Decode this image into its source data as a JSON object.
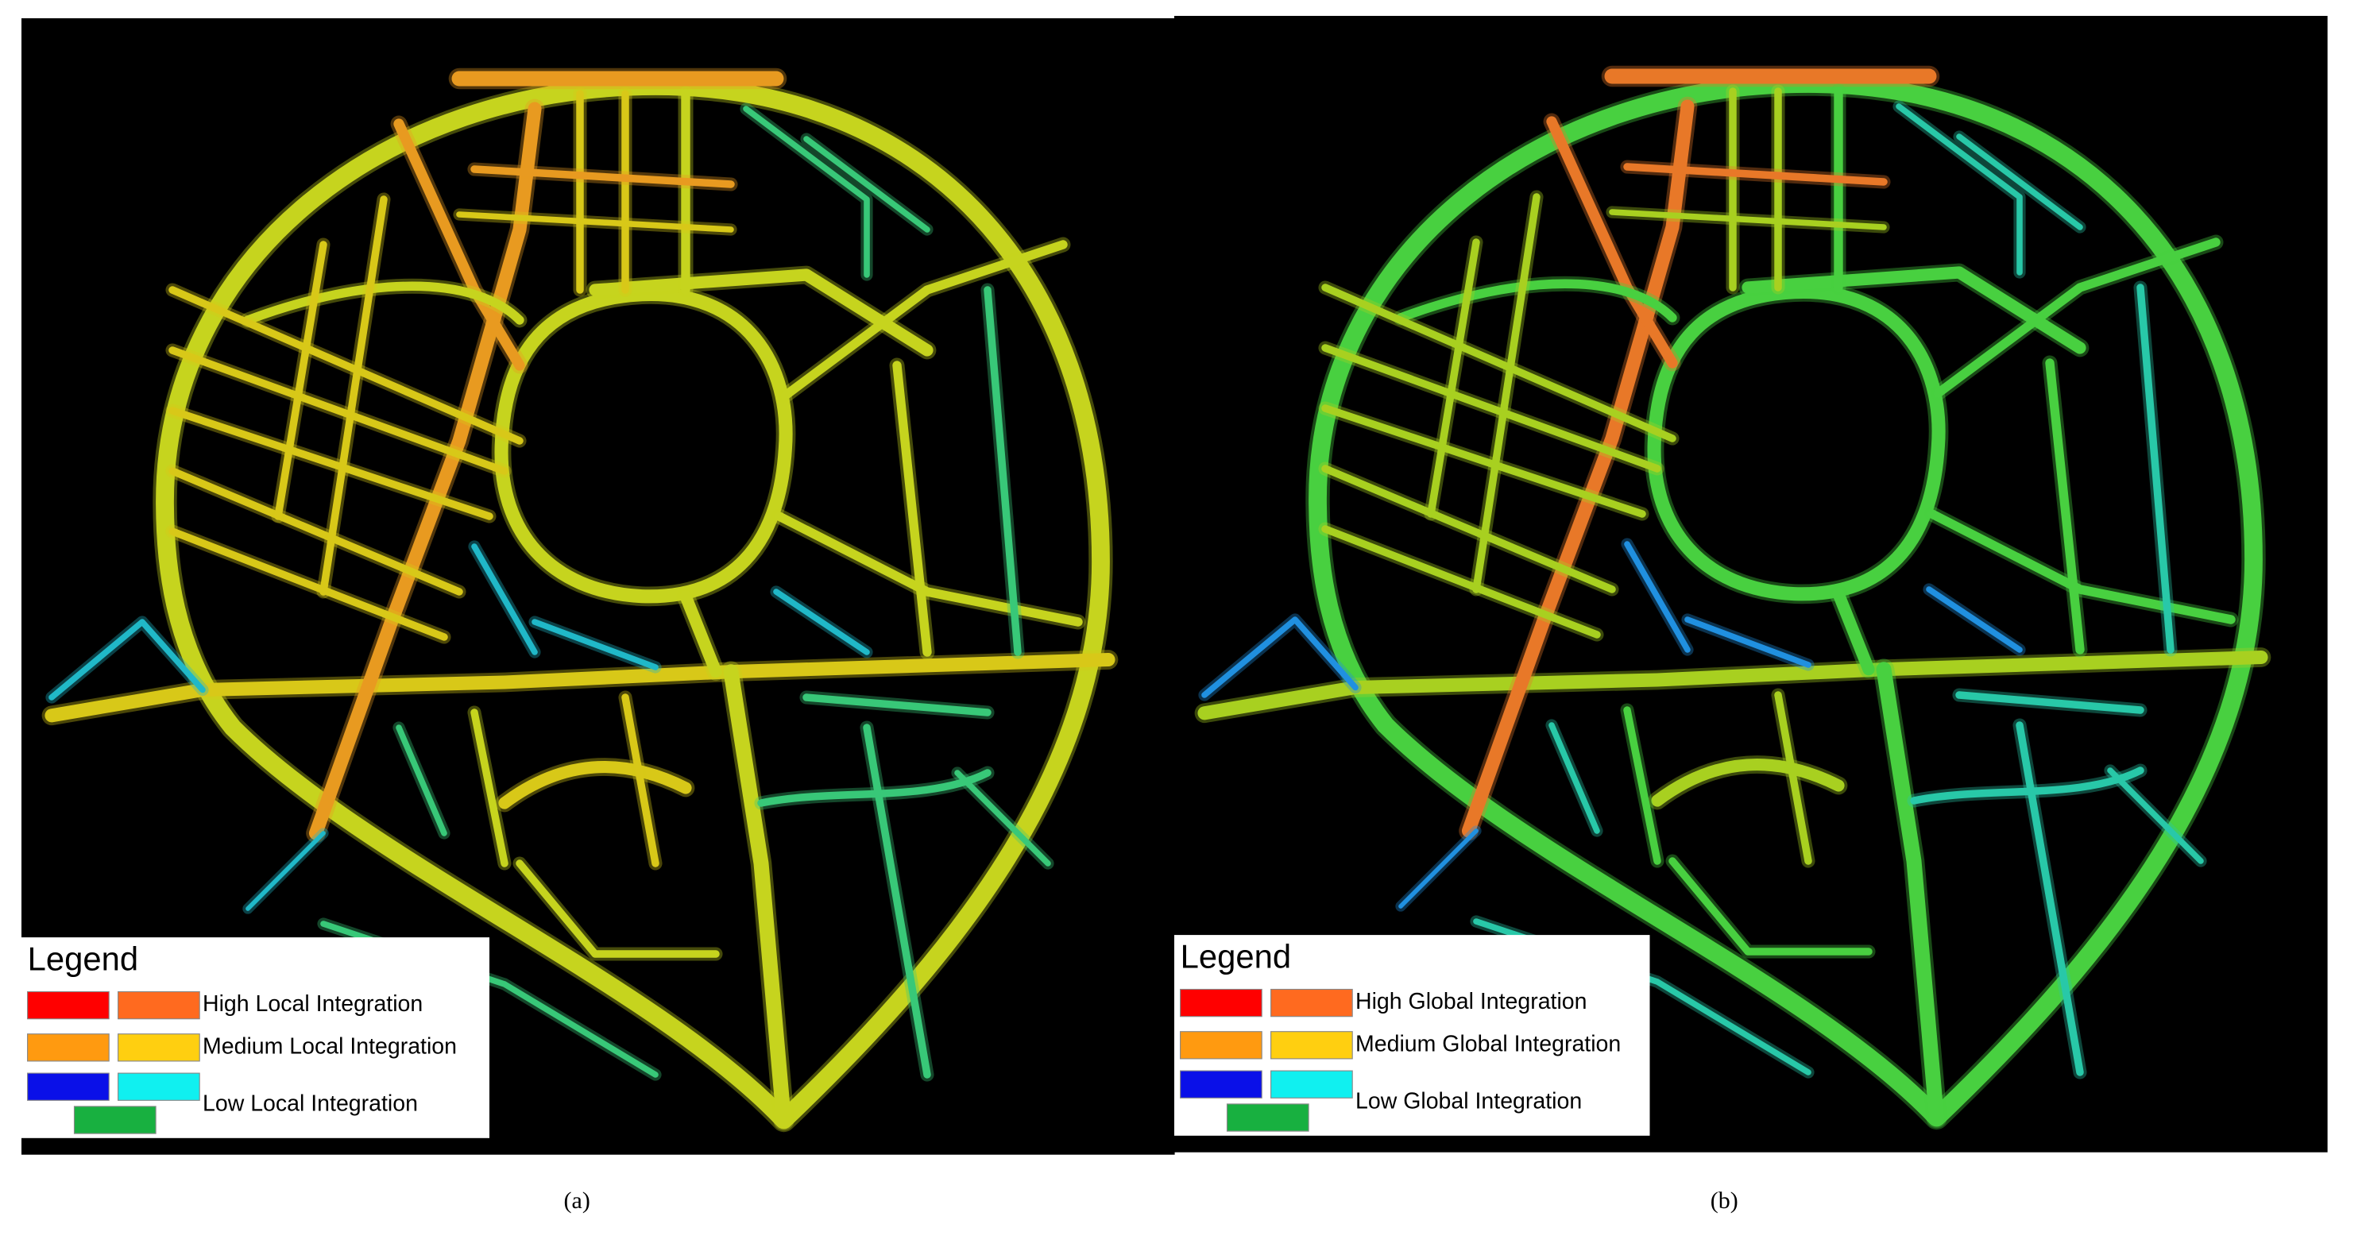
{
  "panels": [
    {
      "caption": "(a)",
      "legend": {
        "title": "Legend",
        "items": [
          {
            "label": "High Local Integration",
            "colors": [
              "#ff0000",
              "#ff6a1f"
            ]
          },
          {
            "label": "Medium Local Integration",
            "colors": [
              "#ff9a10",
              "#ffcf10"
            ]
          },
          {
            "label": "Low Local Integration",
            "colors": [
              "#0a10e8",
              "#10f0f0",
              "#18b040"
            ]
          }
        ]
      }
    },
    {
      "caption": "(b)",
      "legend": {
        "title": "Legend",
        "items": [
          {
            "label": "High Global Integration",
            "colors": [
              "#ff0000",
              "#ff6a1f"
            ]
          },
          {
            "label": "Medium Global Integration",
            "colors": [
              "#ff9a10",
              "#ffcf10"
            ]
          },
          {
            "label": "Low Global Integration",
            "colors": [
              "#0a10e8",
              "#10f0f0",
              "#18b040"
            ]
          }
        ]
      }
    }
  ]
}
